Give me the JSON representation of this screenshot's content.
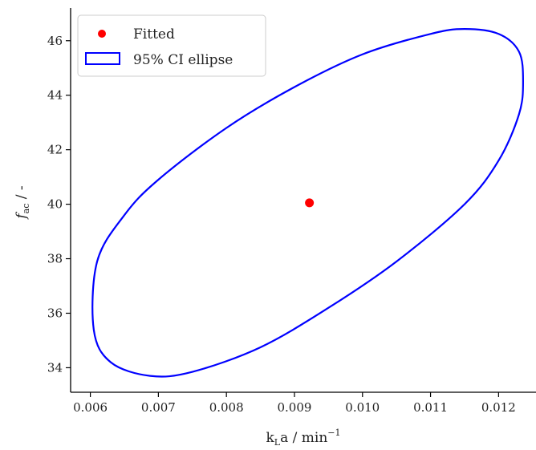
{
  "chart_data": {
    "type": "scatter",
    "title": "",
    "xlabel": {
      "base": "k",
      "sub": "L",
      "rest": "a / min",
      "sup": "−1"
    },
    "ylabel": {
      "base": "f",
      "sub": "ac",
      "rest": " / -"
    },
    "xlim": [
      0.00571,
      0.01255
    ],
    "ylim": [
      33.1,
      47.2
    ],
    "xticks": [
      {
        "value": 0.006,
        "label": "0.006"
      },
      {
        "value": 0.007,
        "label": "0.007"
      },
      {
        "value": 0.008,
        "label": "0.008"
      },
      {
        "value": 0.009,
        "label": "0.009"
      },
      {
        "value": 0.01,
        "label": "0.010"
      },
      {
        "value": 0.011,
        "label": "0.011"
      },
      {
        "value": 0.012,
        "label": "0.012"
      }
    ],
    "yticks": [
      {
        "value": 34,
        "label": "34"
      },
      {
        "value": 36,
        "label": "36"
      },
      {
        "value": 38,
        "label": "38"
      },
      {
        "value": 40,
        "label": "40"
      },
      {
        "value": 42,
        "label": "42"
      },
      {
        "value": 44,
        "label": "44"
      },
      {
        "value": 46,
        "label": "46"
      }
    ],
    "grid": false,
    "legend_position": "top-left",
    "series": [
      {
        "name": "Fitted",
        "kind": "point",
        "color": "#ff0000",
        "points": [
          {
            "x": 0.00922,
            "y": 40.05
          }
        ]
      },
      {
        "name": "95% CI ellipse",
        "kind": "ellipse",
        "color": "#0000ff",
        "center": {
          "x": 0.00922,
          "y": 40.05
        },
        "boundary": [
          {
            "x": 0.01236,
            "y": 44.5
          },
          {
            "x": 0.0123,
            "y": 45.6
          },
          {
            "x": 0.012,
            "y": 46.25
          },
          {
            "x": 0.0115,
            "y": 46.43
          },
          {
            "x": 0.011,
            "y": 46.25
          },
          {
            "x": 0.01,
            "y": 45.5
          },
          {
            "x": 0.009,
            "y": 44.3
          },
          {
            "x": 0.008,
            "y": 42.8
          },
          {
            "x": 0.007,
            "y": 40.9
          },
          {
            "x": 0.0065,
            "y": 39.6
          },
          {
            "x": 0.0061,
            "y": 37.9
          },
          {
            "x": 0.00605,
            "y": 35.4
          },
          {
            "x": 0.0063,
            "y": 34.2
          },
          {
            "x": 0.00688,
            "y": 33.7
          },
          {
            "x": 0.0075,
            "y": 33.85
          },
          {
            "x": 0.0085,
            "y": 34.75
          },
          {
            "x": 0.0095,
            "y": 36.2
          },
          {
            "x": 0.0105,
            "y": 37.9
          },
          {
            "x": 0.0115,
            "y": 40.0
          },
          {
            "x": 0.012,
            "y": 41.6
          },
          {
            "x": 0.0123,
            "y": 43.3
          }
        ]
      }
    ]
  }
}
